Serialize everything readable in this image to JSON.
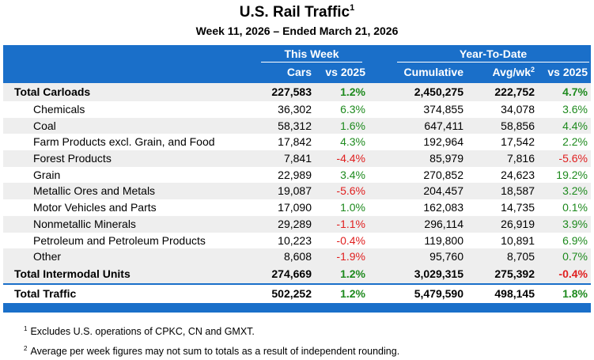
{
  "title": "U.S. Rail Traffic",
  "title_note": "1",
  "subtitle": "Week 11, 2026 – Ended March 21, 2026",
  "header": {
    "group_week": "This Week",
    "group_ytd": "Year-To-Date",
    "cols": [
      "Cars",
      "vs 2025",
      "Cumulative",
      "Avg/wk",
      "vs 2025"
    ],
    "avg_note": "2"
  },
  "rows": [
    {
      "label": "Total Carloads",
      "total": true,
      "cars": "227,583",
      "wk_pct": "1.2%",
      "cum": "2,450,275",
      "avg": "222,752",
      "ytd_pct": "4.7%"
    },
    {
      "label": "Chemicals",
      "cars": "36,302",
      "wk_pct": "6.3%",
      "cum": "374,855",
      "avg": "34,078",
      "ytd_pct": "3.6%"
    },
    {
      "label": "Coal",
      "cars": "58,312",
      "wk_pct": "1.6%",
      "cum": "647,411",
      "avg": "58,856",
      "ytd_pct": "4.4%"
    },
    {
      "label": "Farm Products excl. Grain, and Food",
      "cars": "17,842",
      "wk_pct": "4.3%",
      "cum": "192,964",
      "avg": "17,542",
      "ytd_pct": "2.2%"
    },
    {
      "label": "Forest Products",
      "cars": "7,841",
      "wk_pct": "-4.4%",
      "cum": "85,979",
      "avg": "7,816",
      "ytd_pct": "-5.6%"
    },
    {
      "label": "Grain",
      "cars": "22,989",
      "wk_pct": "3.4%",
      "cum": "270,852",
      "avg": "24,623",
      "ytd_pct": "19.2%"
    },
    {
      "label": "Metallic Ores and Metals",
      "cars": "19,087",
      "wk_pct": "-5.6%",
      "cum": "204,457",
      "avg": "18,587",
      "ytd_pct": "3.2%"
    },
    {
      "label": "Motor Vehicles and Parts",
      "cars": "17,090",
      "wk_pct": "1.0%",
      "cum": "162,083",
      "avg": "14,735",
      "ytd_pct": "0.1%"
    },
    {
      "label": "Nonmetallic Minerals",
      "cars": "29,289",
      "wk_pct": "-1.1%",
      "cum": "296,114",
      "avg": "26,919",
      "ytd_pct": "3.9%"
    },
    {
      "label": "Petroleum and Petroleum Products",
      "cars": "10,223",
      "wk_pct": "-0.4%",
      "cum": "119,800",
      "avg": "10,891",
      "ytd_pct": "6.9%"
    },
    {
      "label": "Other",
      "cars": "8,608",
      "wk_pct": "-1.9%",
      "cum": "95,760",
      "avg": "8,705",
      "ytd_pct": "0.7%"
    },
    {
      "label": "Total Intermodal Units",
      "total": true,
      "cars": "274,669",
      "wk_pct": "1.2%",
      "cum": "3,029,315",
      "avg": "275,392",
      "ytd_pct": "-0.4%"
    },
    {
      "label": "Total Traffic",
      "total": true,
      "cars": "502,252",
      "wk_pct": "1.2%",
      "cum": "5,479,590",
      "avg": "498,145",
      "ytd_pct": "1.8%"
    }
  ],
  "notes": [
    {
      "mark": "1",
      "text": "Excludes U.S. operations of CPKC, CN and GMXT."
    },
    {
      "mark": "2",
      "text": "Average per week figures may not sum to totals as a result of independent rounding."
    }
  ]
}
